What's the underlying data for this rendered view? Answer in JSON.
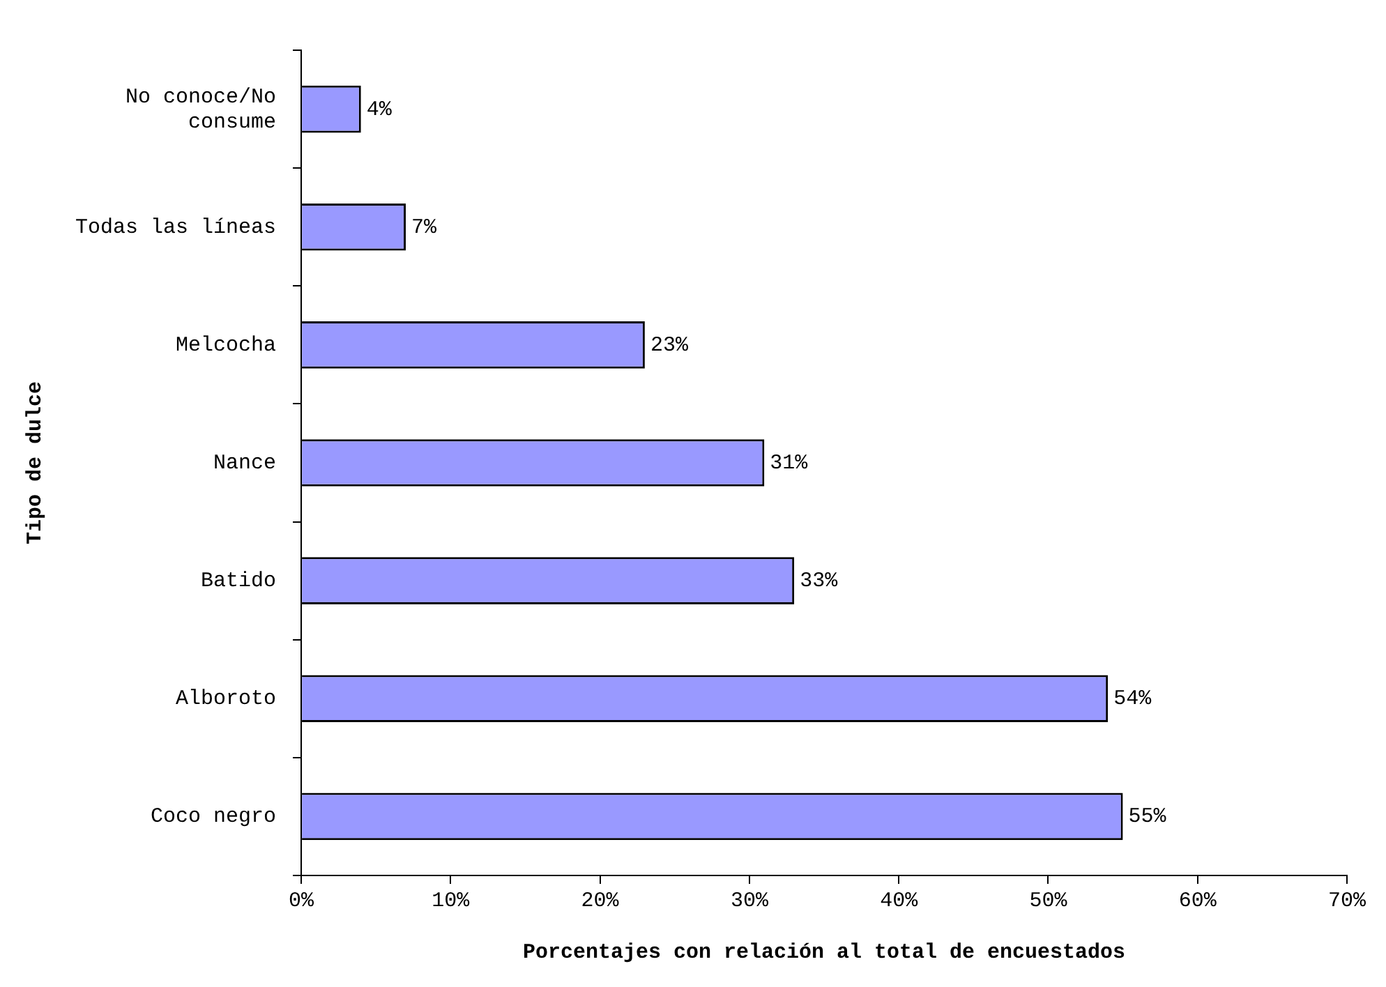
{
  "chart_data": {
    "type": "bar",
    "orientation": "horizontal",
    "xlabel": "Porcentajes con relación al total de encuestados",
    "ylabel": "Tipo de dulce",
    "categories": [
      "No conoce/No consume",
      "Todas las líneas",
      "Melcocha",
      "Nance",
      "Batido",
      "Alboroto",
      "Coco negro"
    ],
    "values": [
      4,
      7,
      23,
      31,
      33,
      54,
      55
    ],
    "value_labels": [
      "4%",
      "7%",
      "23%",
      "31%",
      "33%",
      "54%",
      "55%"
    ],
    "color": "#9999ff",
    "xlim": [
      0,
      70
    ],
    "xticks": [
      {
        "value": 0,
        "label": "0%"
      },
      {
        "value": 10,
        "label": "10%"
      },
      {
        "value": 20,
        "label": "20%"
      },
      {
        "value": 30,
        "label": "30%"
      },
      {
        "value": 40,
        "label": "40%"
      },
      {
        "value": 50,
        "label": "50%"
      },
      {
        "value": 60,
        "label": "60%"
      },
      {
        "value": 70,
        "label": "70%"
      }
    ],
    "grid": false,
    "legend": false
  }
}
